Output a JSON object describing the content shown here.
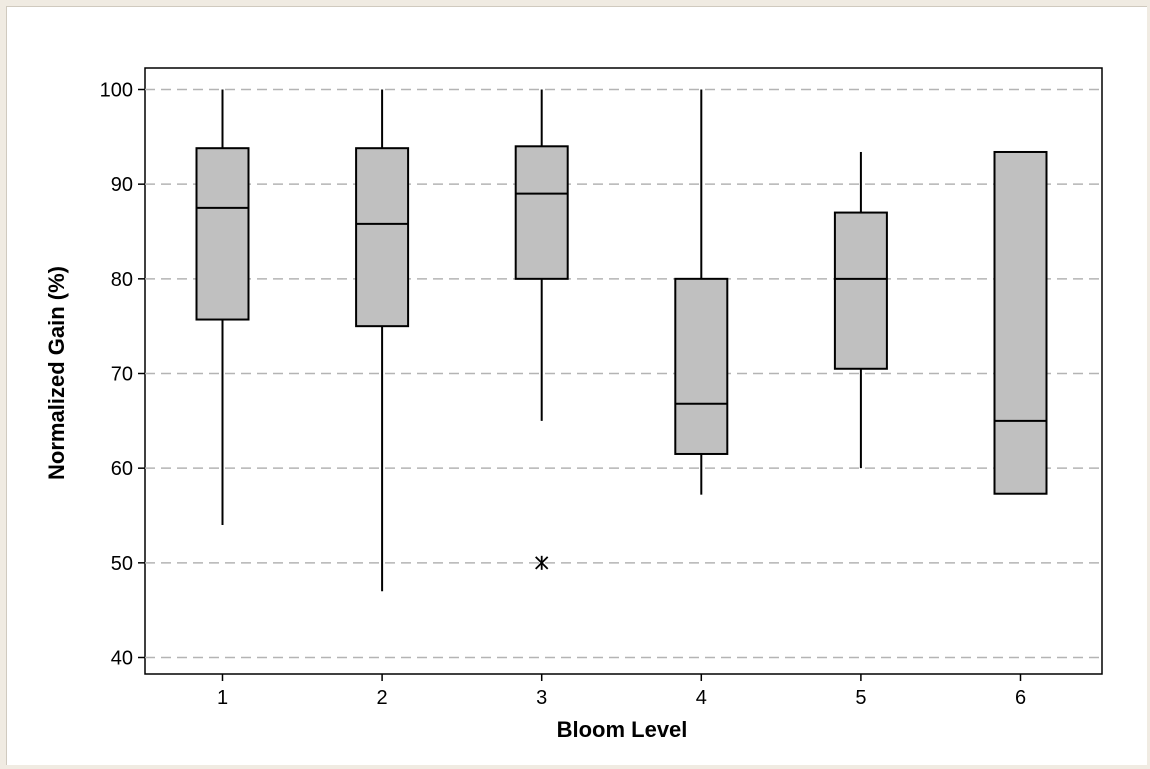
{
  "chart_data": {
    "type": "box",
    "xlabel": "Bloom Level",
    "ylabel": "Normalized Gain (%)",
    "ylim": [
      40,
      100
    ],
    "yticks": [
      40,
      50,
      60,
      70,
      80,
      90,
      100
    ],
    "grid": "horizontal dashed",
    "categories": [
      "1",
      "2",
      "3",
      "4",
      "5",
      "6"
    ],
    "boxes": [
      {
        "category": "1",
        "whisker_low": 54,
        "q1": 75.7,
        "median": 87.5,
        "q3": 93.8,
        "whisker_high": 100,
        "outliers": []
      },
      {
        "category": "2",
        "whisker_low": 47,
        "q1": 75,
        "median": 85.8,
        "q3": 93.8,
        "whisker_high": 100,
        "outliers": []
      },
      {
        "category": "3",
        "whisker_low": 65,
        "q1": 80,
        "median": 89,
        "q3": 94,
        "whisker_high": 100,
        "outliers": [
          50
        ]
      },
      {
        "category": "4",
        "whisker_low": 57.2,
        "q1": 61.5,
        "median": 66.8,
        "q3": 80,
        "whisker_high": 100,
        "outliers": []
      },
      {
        "category": "5",
        "whisker_low": 60,
        "q1": 70.5,
        "median": 80,
        "q3": 87,
        "whisker_high": 93.4,
        "outliers": []
      },
      {
        "category": "6",
        "whisker_low": 57.3,
        "q1": 57.3,
        "median": 65,
        "q3": 93.4,
        "whisker_high": 93.4,
        "outliers": []
      }
    ],
    "colors": {
      "box_fill": "#c0c0c0",
      "stroke": "#000000",
      "grid": "#b4b4b4",
      "background": "#ffffff",
      "frame": "#f0ebe2"
    }
  }
}
